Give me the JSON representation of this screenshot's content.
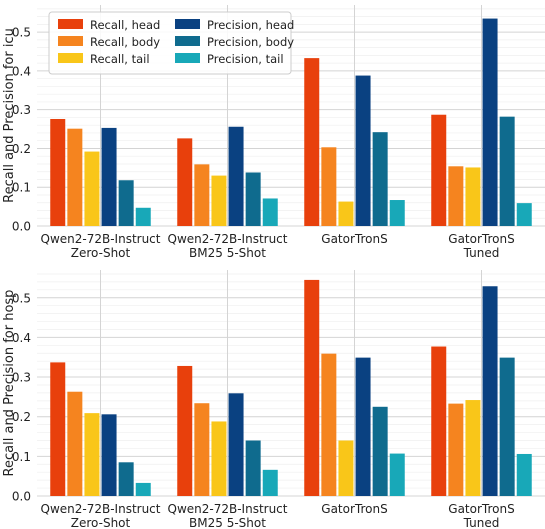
{
  "chart_data": [
    {
      "type": "bar",
      "title": "",
      "xlabel": "",
      "ylabel": "Recall and Precision for icu",
      "ylim": [
        0,
        0.57
      ],
      "yticks": [
        0.0,
        0.1,
        0.2,
        0.3,
        0.4,
        0.5
      ],
      "grid": true,
      "legend": "top-left",
      "categories": [
        [
          "Qwen2-72B-Instruct",
          "Zero-Shot"
        ],
        [
          "Qwen2-72B-Instruct",
          "BM25 5-Shot"
        ],
        [
          "GatorTronS"
        ],
        [
          "GatorTronS",
          "Tuned"
        ]
      ],
      "series": [
        {
          "name": "Recall, head",
          "color": "#e8400c",
          "values": [
            0.276,
            0.226,
            0.433,
            0.287
          ]
        },
        {
          "name": "Recall, body",
          "color": "#f5841f",
          "values": [
            0.251,
            0.159,
            0.203,
            0.154
          ]
        },
        {
          "name": "Recall, tail",
          "color": "#f9c619",
          "values": [
            0.192,
            0.13,
            0.063,
            0.151
          ]
        },
        {
          "name": "Precision, head",
          "color": "#0a4181",
          "values": [
            0.253,
            0.256,
            0.388,
            0.535
          ]
        },
        {
          "name": "Precision, body",
          "color": "#0f6b8e",
          "values": [
            0.118,
            0.138,
            0.242,
            0.282
          ]
        },
        {
          "name": "Precision, tail",
          "color": "#18a8b8",
          "values": [
            0.047,
            0.071,
            0.067,
            0.059
          ]
        }
      ]
    },
    {
      "type": "bar",
      "title": "",
      "xlabel": "",
      "ylabel": "Recall and Precision for hosp",
      "ylim": [
        0,
        0.57
      ],
      "yticks": [
        0.0,
        0.1,
        0.2,
        0.3,
        0.4,
        0.5
      ],
      "grid": true,
      "legend": "",
      "categories": [
        [
          "Qwen2-72B-Instruct",
          "Zero-Shot"
        ],
        [
          "Qwen2-72B-Instruct",
          "BM25 5-Shot"
        ],
        [
          "GatorTronS"
        ],
        [
          "GatorTronS",
          "Tuned"
        ]
      ],
      "series": [
        {
          "name": "Recall, head",
          "color": "#e8400c",
          "values": [
            0.337,
            0.328,
            0.545,
            0.377
          ]
        },
        {
          "name": "Recall, body",
          "color": "#f5841f",
          "values": [
            0.263,
            0.234,
            0.359,
            0.233
          ]
        },
        {
          "name": "Recall, tail",
          "color": "#f9c619",
          "values": [
            0.209,
            0.188,
            0.14,
            0.242
          ]
        },
        {
          "name": "Precision, head",
          "color": "#0a4181",
          "values": [
            0.206,
            0.259,
            0.349,
            0.529
          ]
        },
        {
          "name": "Precision, body",
          "color": "#0f6b8e",
          "values": [
            0.085,
            0.14,
            0.225,
            0.349
          ]
        },
        {
          "name": "Precision, tail",
          "color": "#18a8b8",
          "values": [
            0.033,
            0.066,
            0.107,
            0.106
          ]
        }
      ]
    }
  ]
}
